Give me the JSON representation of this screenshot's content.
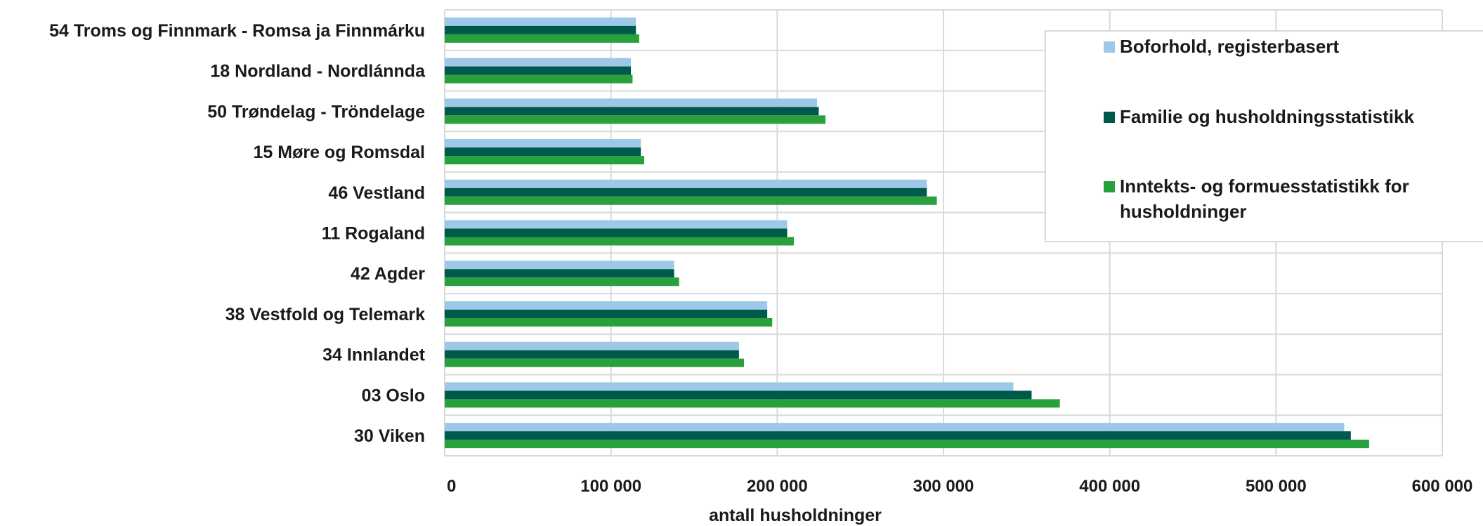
{
  "chart_data": {
    "type": "bar",
    "orientation": "horizontal",
    "categories": [
      "54 Troms og Finnmark - Romsa ja Finnmárku",
      "18 Nordland - Nordlánnda",
      "50 Trøndelag - Tröndelage",
      "15 Møre og Romsdal",
      "46 Vestland",
      "11 Rogaland",
      "42 Agder",
      "38 Vestfold og Telemark",
      "34 Innlandet",
      "03 Oslo",
      "30 Viken"
    ],
    "series": [
      {
        "name": "Boforhold, registerbasert",
        "color": "#9dc8e8",
        "values": [
          115000,
          112000,
          224000,
          118000,
          290000,
          206000,
          138000,
          194000,
          177000,
          342000,
          541000
        ]
      },
      {
        "name": "Familie og husholdningsstatistikk",
        "color": "#005a4b",
        "values": [
          115000,
          112000,
          225000,
          118000,
          290000,
          206000,
          138000,
          194000,
          177000,
          353000,
          545000
        ]
      },
      {
        "name": "Inntekts- og formuesstatistikk for husholdninger",
        "color": "#28a03c",
        "values": [
          117000,
          113000,
          229000,
          120000,
          296000,
          210000,
          141000,
          197000,
          180000,
          370000,
          556000
        ]
      }
    ],
    "legend_lines": [
      [
        "Boforhold, registerbasert"
      ],
      [
        "Familie og husholdningsstatistikk"
      ],
      [
        "Inntekts- og formuesstatistikk for",
        "husholdninger"
      ]
    ],
    "xlabel": "antall husholdninger",
    "ylabel": "",
    "xlim": [
      0,
      600000
    ],
    "x_ticks": [
      0,
      100000,
      200000,
      300000,
      400000,
      500000,
      600000
    ],
    "x_tick_labels": [
      "0",
      "100 000",
      "200 000",
      "300 000",
      "400 000",
      "500 000",
      "600 000"
    ],
    "grid": true,
    "legend_position": "top-right"
  }
}
